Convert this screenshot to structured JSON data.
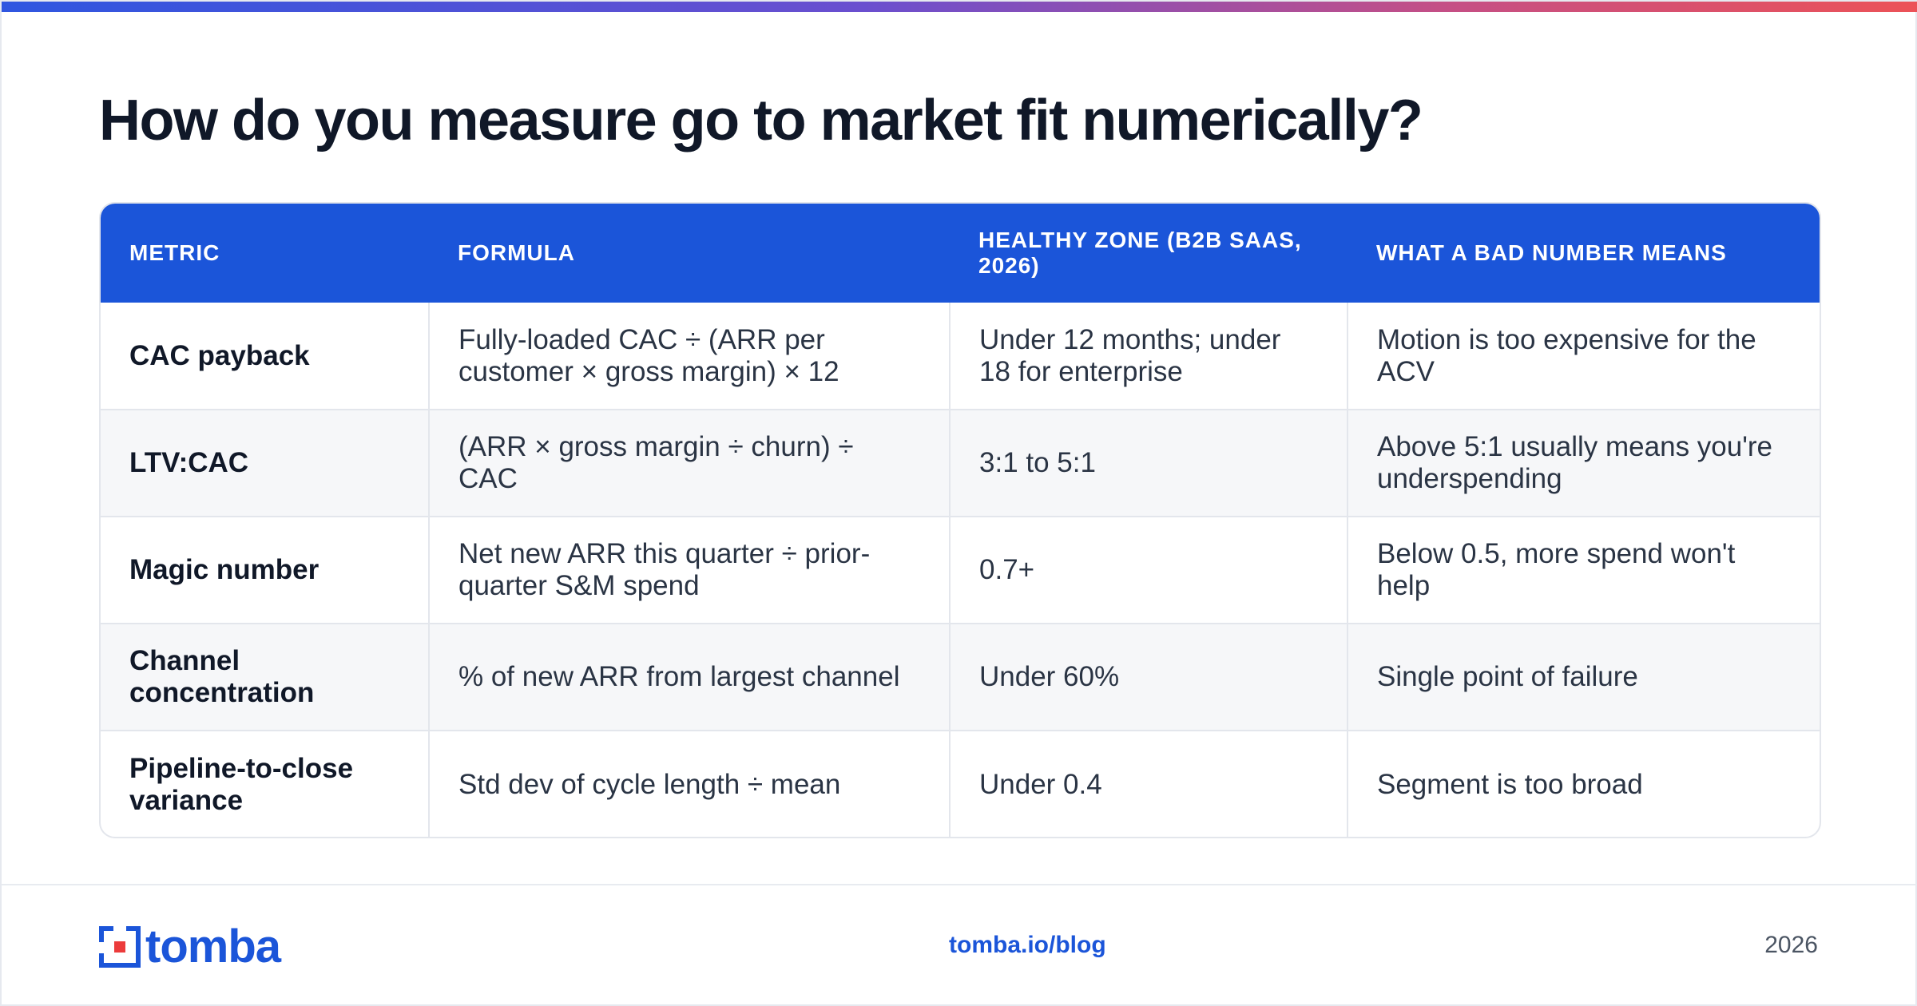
{
  "title": "How do you measure go to market fit numerically?",
  "table": {
    "headers": [
      "METRIC",
      "FORMULA",
      "HEALTHY ZONE (B2B SAAS, 2026)",
      "WHAT A BAD NUMBER MEANS"
    ],
    "rows": [
      [
        "CAC payback",
        "Fully-loaded CAC ÷ (ARR per customer × gross margin) × 12",
        "Under 12 months; under 18 for enterprise",
        "Motion is too expensive for the ACV"
      ],
      [
        "LTV:CAC",
        "(ARR × gross margin ÷ churn) ÷ CAC",
        "3:1 to 5:1",
        "Above 5:1 usually means you're underspending"
      ],
      [
        "Magic number",
        "Net new ARR this quarter ÷ prior-quarter S&M spend",
        "0.7+",
        "Below 0.5, more spend won't help"
      ],
      [
        "Channel concentration",
        "% of new ARR from largest channel",
        "Under 60%",
        "Single point of failure"
      ],
      [
        "Pipeline-to-close variance",
        "Std dev of cycle length ÷ mean",
        "Under 0.4",
        "Segment is too broad"
      ]
    ]
  },
  "footer": {
    "logo_text": "tomba",
    "link": "tomba.io/blog",
    "year": "2026"
  },
  "colors": {
    "accent": "#1b55d9",
    "gradient_start": "#2f56e0",
    "gradient_end": "#ec5257"
  }
}
